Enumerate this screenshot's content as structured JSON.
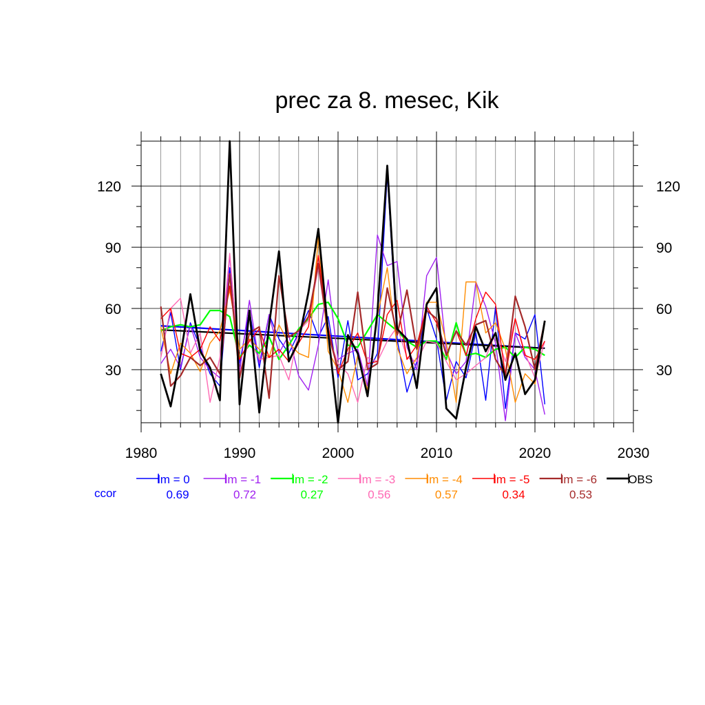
{
  "chart_data": {
    "type": "line",
    "title": "prec za 8. mesec, Kik",
    "xlim": [
      1980,
      2030
    ],
    "ylim": [
      4,
      142
    ],
    "x_ticks": [
      1980,
      1990,
      2000,
      2010,
      2020,
      2030
    ],
    "y_ticks": [
      30,
      60,
      90,
      120
    ],
    "grid": true,
    "x": [
      1982,
      1983,
      1984,
      1985,
      1986,
      1987,
      1988,
      1989,
      1990,
      1991,
      1992,
      1993,
      1994,
      1995,
      1996,
      1997,
      1998,
      1999,
      2000,
      2001,
      2002,
      2003,
      2004,
      2005,
      2006,
      2007,
      2008,
      2009,
      2010,
      2011,
      2012,
      2013,
      2014,
      2015,
      2016,
      2017,
      2018,
      2019,
      2020,
      2021
    ],
    "series": [
      {
        "name": "lm = 0",
        "color": "#0000ff",
        "width": 1.4,
        "values": [
          39,
          58,
          30,
          53,
          41,
          28,
          22,
          80,
          33,
          59,
          31,
          57,
          45,
          38,
          48,
          59,
          46,
          56,
          26,
          54,
          25,
          28,
          38,
          126,
          45,
          19,
          34,
          60,
          45,
          15,
          34,
          26,
          48,
          15,
          61,
          11,
          48,
          45,
          57,
          13
        ]
      },
      {
        "name": "lm = -1",
        "color": "#a020f0",
        "width": 1.4,
        "values": [
          33,
          40,
          31,
          52,
          36,
          30,
          26,
          86,
          29,
          64,
          33,
          57,
          38,
          47,
          27,
          20,
          42,
          74,
          35,
          38,
          40,
          22,
          96,
          81,
          83,
          41,
          30,
          76,
          85,
          39,
          28,
          34,
          73,
          61,
          43,
          5,
          48,
          36,
          30,
          8
        ]
      },
      {
        "name": "lm = -2",
        "color": "#00ff00",
        "width": 2.2,
        "values": [
          49,
          51,
          52,
          51,
          52,
          59,
          59,
          56,
          36,
          42,
          38,
          46,
          35,
          42,
          50,
          55,
          62,
          63,
          55,
          42,
          41,
          49,
          57,
          53,
          49,
          44,
          41,
          44,
          44,
          35,
          53,
          37,
          38,
          36,
          40,
          41,
          36,
          41,
          40,
          37
        ]
      },
      {
        "name": "lm = -3",
        "color": "#ff69b4",
        "width": 1.4,
        "values": [
          36,
          60,
          65,
          38,
          48,
          14,
          36,
          87,
          28,
          45,
          35,
          36,
          37,
          25,
          49,
          54,
          80,
          47,
          33,
          28,
          14,
          36,
          34,
          44,
          51,
          36,
          34,
          44,
          43,
          34,
          25,
          28,
          32,
          36,
          48,
          34,
          55,
          38,
          26,
          44
        ]
      },
      {
        "name": "lm = -4",
        "color": "#ff8c00",
        "width": 1.4,
        "values": [
          51,
          28,
          43,
          38,
          29,
          43,
          49,
          69,
          40,
          45,
          40,
          36,
          52,
          43,
          38,
          36,
          95,
          39,
          30,
          14,
          37,
          20,
          56,
          80,
          41,
          28,
          36,
          63,
          63,
          43,
          14,
          73,
          73,
          48,
          53,
          40,
          14,
          28,
          23,
          53
        ]
      },
      {
        "name": "lm = -5",
        "color": "#ff0000",
        "width": 1.4,
        "values": [
          55,
          60,
          38,
          36,
          40,
          51,
          44,
          71,
          35,
          44,
          50,
          36,
          40,
          34,
          43,
          51,
          86,
          51,
          28,
          40,
          48,
          33,
          34,
          57,
          64,
          35,
          42,
          61,
          53,
          37,
          49,
          37,
          55,
          68,
          62,
          27,
          55,
          37,
          35,
          44
        ]
      },
      {
        "name": "lm = -6",
        "color": "#a52a2a",
        "width": 2.2,
        "values": [
          61,
          22,
          27,
          36,
          32,
          36,
          28,
          77,
          26,
          48,
          51,
          16,
          76,
          46,
          49,
          56,
          82,
          48,
          30,
          34,
          68,
          30,
          33,
          70,
          47,
          69,
          40,
          59,
          55,
          37,
          49,
          42,
          52,
          54,
          35,
          27,
          66,
          51,
          30,
          54
        ]
      },
      {
        "name": "OBS",
        "color": "#000000",
        "width": 2.8,
        "values": [
          28,
          12,
          37,
          67,
          39,
          31,
          15,
          142,
          13,
          59,
          9,
          52,
          88,
          34,
          44,
          68,
          99,
          48,
          4,
          47,
          38,
          17,
          58,
          130,
          50,
          45,
          21,
          62,
          70,
          11,
          6,
          31,
          51,
          39,
          48,
          25,
          38,
          18,
          25,
          54
        ]
      }
    ],
    "trend_lines": [
      {
        "color": "#0000ff",
        "x": [
          1982,
          2021
        ],
        "y": [
          51.5,
          40.5
        ]
      },
      {
        "color": "#000000",
        "x": [
          1982,
          2021
        ],
        "y": [
          49.5,
          40.5
        ]
      }
    ],
    "ccor_label": "ccor",
    "ccor_values": [
      "0.69",
      "0.72",
      "0.27",
      "0.56",
      "0.57",
      "0.34",
      "0.53"
    ]
  }
}
